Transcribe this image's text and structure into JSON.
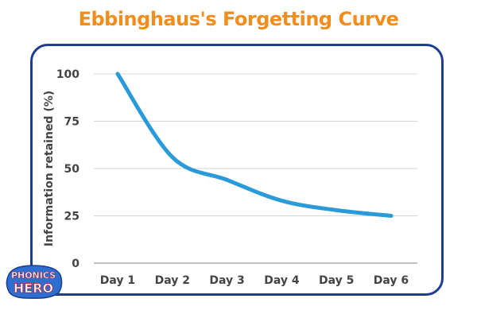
{
  "title": "Ebbinghaus's Forgetting Curve",
  "logo": {
    "line1": "PHONICS",
    "line2": "HERO"
  },
  "colors": {
    "title": "#f28c1b",
    "frame": "#1f3d8f",
    "line": "#2a9ad8",
    "axis_text": "#444444",
    "grid": "#d4d4d4"
  },
  "chart_data": {
    "type": "line",
    "title": "Ebbinghaus's Forgetting Curve",
    "xlabel": "",
    "ylabel": "Information retained (%)",
    "categories": [
      "Day 1",
      "Day 2",
      "Day 3",
      "Day 4",
      "Day 5",
      "Day 6"
    ],
    "yticks": [
      0,
      25,
      50,
      75,
      100
    ],
    "ylim": [
      0,
      100
    ],
    "grid": true,
    "series": [
      {
        "values": [
          100,
          56,
          44,
          33,
          28,
          25
        ]
      }
    ]
  }
}
